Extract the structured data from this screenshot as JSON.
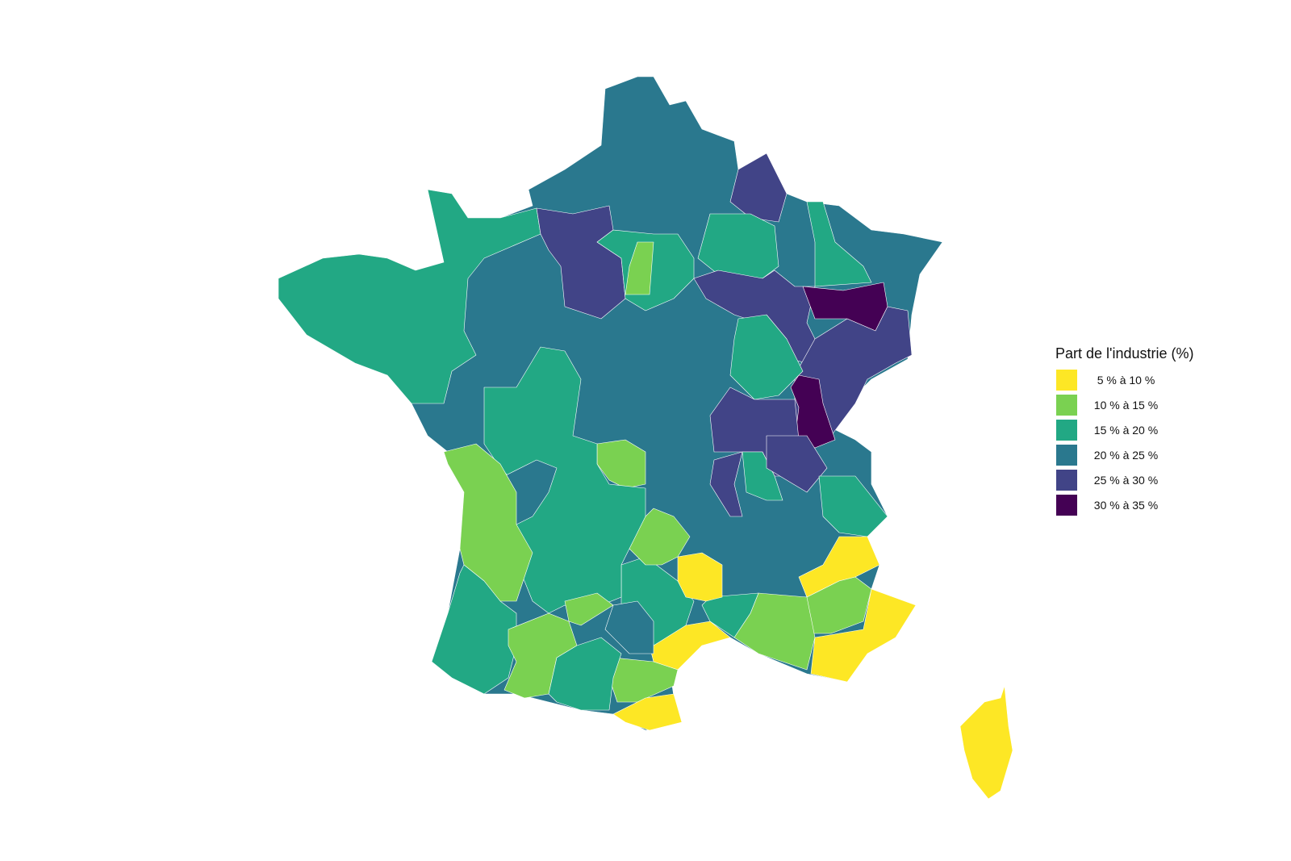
{
  "legend": {
    "title": "Part de l'industrie (%)",
    "items": [
      {
        "label": "5 % à 10 %",
        "color": "#FDE725"
      },
      {
        "label": "10 % à 15 %",
        "color": "#7AD151"
      },
      {
        "label": "15 % à 20 %",
        "color": "#22A884"
      },
      {
        "label": "20 % à 25 %",
        "color": "#2A788E"
      },
      {
        "label": "25 % à 30 %",
        "color": "#414487"
      },
      {
        "label": "30 % à 35 %",
        "color": "#440154"
      }
    ]
  },
  "border_color": "#ffffff"
}
